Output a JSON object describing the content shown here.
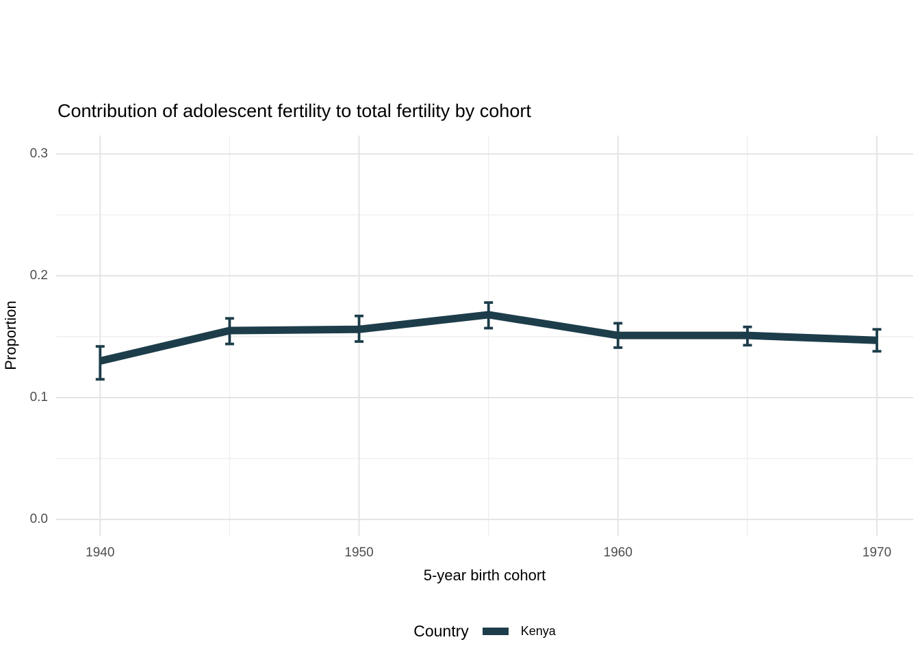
{
  "chart_data": {
    "type": "line",
    "title": "Contribution of adolescent fertility to total fertility by cohort",
    "xlabel": "5-year birth cohort",
    "ylabel": "Proportion",
    "x": [
      1940,
      1945,
      1950,
      1955,
      1960,
      1965,
      1970
    ],
    "series": [
      {
        "name": "Kenya",
        "color": "#1d3d4a",
        "values": [
          0.13,
          0.155,
          0.156,
          0.168,
          0.151,
          0.151,
          0.147
        ],
        "ci_lower": [
          0.115,
          0.144,
          0.146,
          0.157,
          0.141,
          0.143,
          0.138
        ],
        "ci_upper": [
          0.142,
          0.165,
          0.167,
          0.178,
          0.161,
          0.158,
          0.156
        ]
      }
    ],
    "error_bars": true,
    "xlim": [
      1938.3,
      1971.4
    ],
    "ylim": [
      -0.0135,
      0.3151
    ],
    "x_major_ticks": [
      1940,
      1950,
      1960,
      1970
    ],
    "x_tick_labels": [
      "1940",
      "1950",
      "1960",
      "1970"
    ],
    "x_minor_ticks": [
      1945,
      1955,
      1965
    ],
    "y_major_ticks": [
      0.0,
      0.1,
      0.2,
      0.3
    ],
    "y_tick_labels": [
      "0.0",
      "0.1",
      "0.2",
      "0.3"
    ],
    "y_minor_ticks": [
      0.05,
      0.15,
      0.25
    ],
    "grid": true,
    "legend": {
      "title": "Country",
      "position": "bottom"
    },
    "colors": {
      "background": "#ffffff",
      "major_grid": "#e4e4e4",
      "minor_grid": "#eeeeee",
      "tick_label": "#4d4d4d",
      "text": "#000000"
    }
  }
}
